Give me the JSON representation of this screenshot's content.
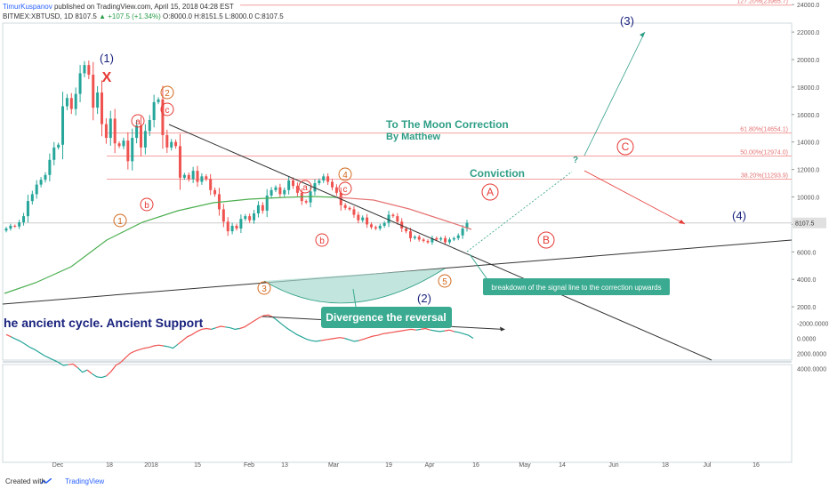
{
  "header": {
    "author": "TimurKuspanov",
    "published": "published on TradingView.com, April 15, 2018 04:28 EST",
    "symbol": "BITMEX:XBTUSD, 1D",
    "last": "8107.5",
    "change": "▲ +107.5 (+1.34%)",
    "ohlc": "O:8000.0  H:8151.5  L:8000.0  C:8107.5"
  },
  "footer": {
    "created_with": "Created with",
    "brand": "TradingView"
  },
  "colors": {
    "bull": "#26a69a",
    "bear": "#ef5350",
    "ma_green": "#4caf50",
    "ma_red": "#e57373",
    "wave_blue": "#1a237e",
    "abc_red": "#e53935",
    "orange": "#d2691e",
    "teal": "#2e9e86",
    "fib": "#f4a0a0"
  },
  "chart_data": [
    {
      "type": "candlestick",
      "title": "BITMEX:XBTUSD, 1D",
      "x_ticks": [
        "Dec",
        "18",
        "2018",
        "15",
        "Feb",
        "13",
        "Mar",
        "19",
        "Apr",
        "16",
        "May",
        "14",
        "Jun",
        "18",
        "Jul",
        "16"
      ],
      "y_ticks": [
        "24000.0",
        "22000.0",
        "20000.0",
        "18000.0",
        "16000.0",
        "14000.0",
        "12000.0",
        "10000.0",
        "8000.0",
        "6000.0",
        "4000.0",
        "2000.0"
      ],
      "ylim": [
        0,
        25000
      ],
      "current_price_label": "8107.5",
      "close_prices": [
        7700,
        7900,
        7850,
        8150,
        8600,
        9700,
        10200,
        10900,
        11250,
        11600,
        12700,
        13600,
        13800,
        16600,
        17200,
        16400,
        17500,
        19000,
        19600,
        18900,
        16500,
        17600,
        15300,
        14300,
        15700,
        13900,
        13700,
        14100,
        12600,
        14300,
        15200,
        13600,
        14800,
        15600,
        16900,
        17100,
        14500,
        13600,
        14000,
        13700,
        11400,
        11600,
        11300,
        11900,
        11100,
        11500,
        11300,
        10500,
        10200,
        9100,
        8200,
        7500,
        7900,
        7700,
        8400,
        8600,
        8300,
        8800,
        9400,
        9000,
        10100,
        10500,
        10700,
        10200,
        10500,
        11200,
        10800,
        10300,
        9700,
        9600,
        10400,
        11000,
        11200,
        11500,
        11100,
        10700,
        10300,
        9400,
        9200,
        9100,
        8700,
        8300,
        8500,
        8000,
        7800,
        7700,
        7900,
        8100,
        8700,
        8600,
        8200,
        7700,
        7500,
        7000,
        7100,
        6900,
        6800,
        6700,
        7000,
        6900,
        7000,
        6700,
        6900,
        7000,
        7200,
        7700,
        8107.5
      ],
      "fib_levels": [
        {
          "label": "127.20%(23965.7)",
          "value": 23965.7
        },
        {
          "label": "61.80%(14654.1)",
          "value": 14654.1
        },
        {
          "label": "50.00%(12974.0)",
          "value": 12974.0
        },
        {
          "label": "38.20%(11293.9)",
          "value": 11293.9
        }
      ],
      "wave_labels": [
        {
          "text": "(1)",
          "color": "blue"
        },
        {
          "text": "X",
          "color": "red"
        },
        {
          "text": "2",
          "color": "orange"
        },
        {
          "text": "c",
          "color": "red"
        },
        {
          "text": "a",
          "color": "red"
        },
        {
          "text": "b",
          "color": "red"
        },
        {
          "text": "1",
          "color": "orange"
        },
        {
          "text": "3",
          "color": "orange"
        },
        {
          "text": "a",
          "color": "red"
        },
        {
          "text": "b",
          "color": "red"
        },
        {
          "text": "4",
          "color": "orange"
        },
        {
          "text": "c",
          "color": "red"
        },
        {
          "text": "5",
          "color": "orange"
        },
        {
          "text": "(2)",
          "color": "blue"
        },
        {
          "text": "(3)",
          "color": "blue"
        },
        {
          "text": "(4)",
          "color": "blue"
        },
        {
          "text": "A",
          "color": "red"
        },
        {
          "text": "B",
          "color": "red"
        },
        {
          "text": "C",
          "color": "red"
        },
        {
          "text": "?",
          "color": "teal"
        }
      ],
      "annotations": {
        "title_line1": "To The Moon Correction",
        "title_line2": "By Matthew",
        "conviction": "Conviction",
        "ancient": "he ancient cycle. Ancient Support",
        "divergence": "Divergence the reversal",
        "breakdown": "breakdown of the signal line to the correction upwards"
      }
    },
    {
      "type": "line",
      "y_ticks": [
        "4000.0000",
        "2000.0000",
        "0.0000",
        "-2000.0000"
      ],
      "ylim": [
        -3300,
        5600
      ],
      "values": [
        -500,
        -200,
        100,
        400,
        800,
        1200,
        1500,
        1900,
        2300,
        2600,
        2900,
        3200,
        3600,
        3500,
        3400,
        3900,
        4500,
        4200,
        4700,
        5100,
        5200,
        5000,
        4400,
        3600,
        3200,
        2600,
        2000,
        1700,
        1500,
        1300,
        1200,
        1000,
        900,
        1000,
        1100,
        1300,
        800,
        300,
        -200,
        -500,
        -900,
        -1200,
        -1300,
        -1200,
        -1400,
        -1600,
        -1500,
        -1400,
        -1200,
        -1300,
        -1500,
        -1900,
        -2300,
        -2700,
        -3000,
        -3100,
        -2800,
        -2300,
        -1800,
        -1300,
        -900,
        -500,
        -200,
        100,
        300,
        400,
        300,
        200,
        100,
        0,
        -100,
        0,
        200,
        400,
        300,
        100,
        -100,
        -300,
        -400,
        -600,
        -700,
        -800,
        -900,
        -1000,
        -1100,
        -1200,
        -1100,
        -1200,
        -1300,
        -1100,
        -1000,
        -900,
        -1000,
        -1100,
        -900,
        -800,
        -600,
        -400,
        0
      ]
    }
  ]
}
